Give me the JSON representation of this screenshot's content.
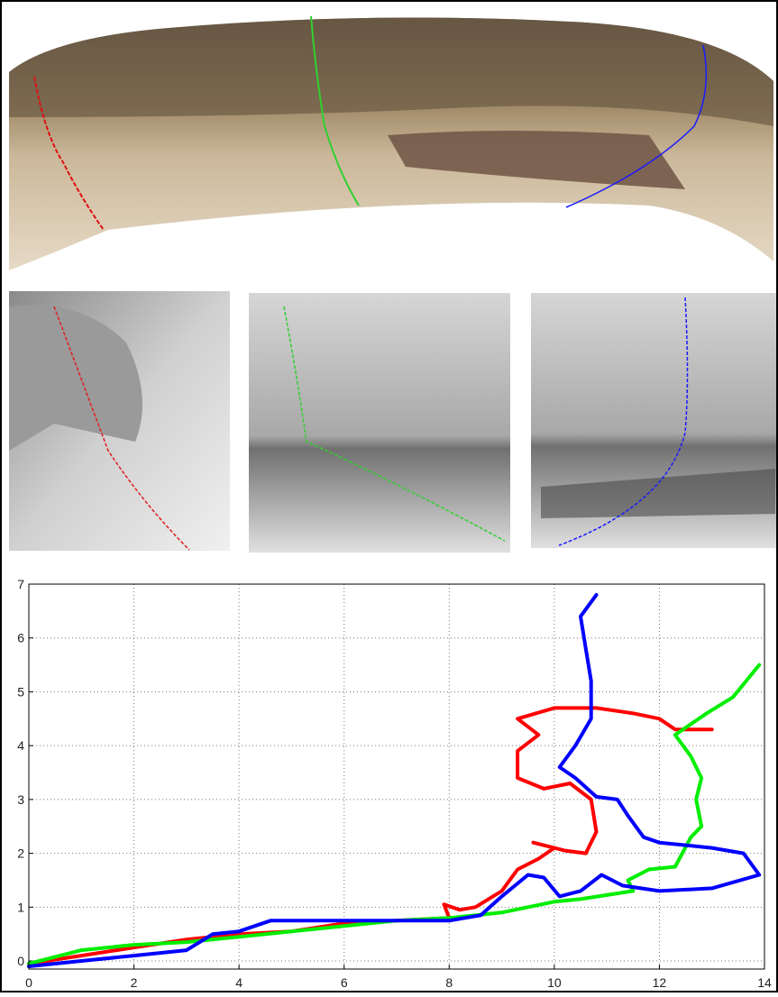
{
  "chart_data": {
    "type": "line",
    "xlim": [
      0,
      14
    ],
    "ylim": [
      -0.15,
      7
    ],
    "xticks": [
      0,
      2,
      4,
      6,
      8,
      10,
      12,
      14
    ],
    "yticks": [
      0,
      1,
      2,
      3,
      4,
      5,
      6,
      7
    ],
    "grid": true,
    "series": [
      {
        "color": "#ff0000",
        "x": [
          0,
          1,
          2,
          3,
          4,
          5,
          6,
          7,
          8,
          7.9,
          8.2,
          8.5,
          9.0,
          9.3,
          9.7,
          10,
          9.6,
          10.2,
          10.6,
          10.8,
          10.7,
          10.3,
          9.8,
          9.3,
          9.3,
          9.7,
          9.3,
          10,
          10.8,
          11.5,
          12,
          12.3,
          13
        ],
        "values": [
          -0.05,
          0.1,
          0.25,
          0.4,
          0.5,
          0.55,
          0.7,
          0.75,
          0.8,
          1.05,
          0.95,
          1.0,
          1.3,
          1.7,
          1.9,
          2.1,
          2.2,
          2.05,
          2.0,
          2.4,
          3.0,
          3.3,
          3.2,
          3.4,
          3.9,
          4.2,
          4.5,
          4.7,
          4.7,
          4.6,
          4.5,
          4.3,
          4.3
        ]
      },
      {
        "color": "#00ee00",
        "x": [
          0,
          1,
          2,
          3,
          4,
          5,
          6,
          7,
          8,
          9,
          10,
          10.5,
          11.5,
          11.4,
          11.8,
          12.3,
          12.6,
          12.8,
          12.7,
          12.8,
          12.6,
          12.3,
          12.9,
          13.4,
          13.9
        ],
        "values": [
          -0.05,
          0.2,
          0.3,
          0.35,
          0.45,
          0.55,
          0.65,
          0.75,
          0.8,
          0.9,
          1.1,
          1.15,
          1.3,
          1.5,
          1.7,
          1.75,
          2.3,
          2.5,
          3.0,
          3.4,
          3.8,
          4.2,
          4.6,
          4.9,
          5.5
        ]
      },
      {
        "color": "#0000ff",
        "x": [
          0,
          1,
          2,
          3,
          3.5,
          4,
          4.6,
          5,
          6,
          7,
          8,
          8.6,
          9,
          9.5,
          9.8,
          10.1,
          10.5,
          10.9,
          11.3,
          12,
          13,
          13.9,
          13.6,
          13,
          12,
          11.7,
          11.4,
          11.2,
          10.8,
          10.4,
          10.1,
          10.4,
          10.7,
          10.7,
          10.6,
          10.5,
          10.8
        ],
        "values": [
          -0.1,
          0,
          0.1,
          0.2,
          0.5,
          0.55,
          0.75,
          0.75,
          0.75,
          0.75,
          0.75,
          0.85,
          1.2,
          1.6,
          1.55,
          1.2,
          1.3,
          1.6,
          1.4,
          1.3,
          1.35,
          1.6,
          2.0,
          2.1,
          2.2,
          2.3,
          2.7,
          3.0,
          3.05,
          3.4,
          3.6,
          4.0,
          4.5,
          5.2,
          5.8,
          6.4,
          6.8
        ]
      }
    ]
  }
}
